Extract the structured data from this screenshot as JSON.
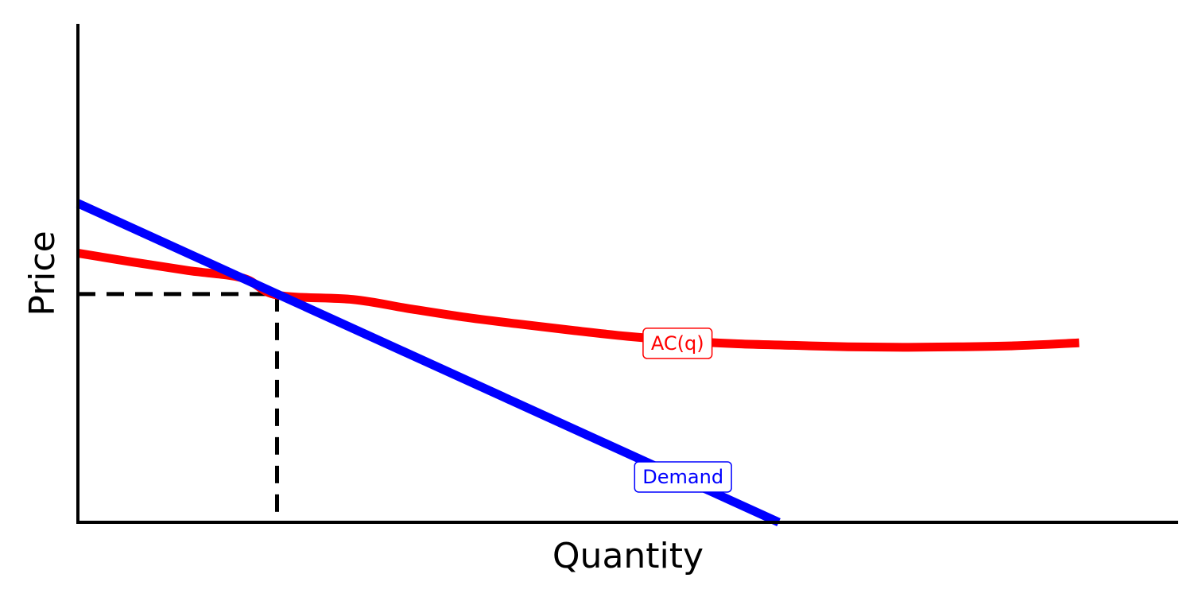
{
  "chart_data": {
    "type": "line",
    "title": "",
    "xlabel": "Quantity",
    "ylabel": "Price",
    "xlim": [
      0,
      10
    ],
    "ylim": [
      0,
      10
    ],
    "grid": false,
    "legend": "none",
    "series": [
      {
        "name": "Demand",
        "color": "#0000ff",
        "x": [
          0,
          6.37
        ],
        "y": [
          6.4,
          0
        ]
      },
      {
        "name": "AC(q)",
        "color": "#ff0000",
        "x": [
          0,
          0.5,
          1,
          1.5,
          1.81,
          2.5,
          3,
          3.5,
          4,
          4.5,
          5,
          5.5,
          6,
          6.5,
          7,
          7.5,
          8,
          8.5,
          9.1
        ],
        "y": [
          5.4,
          5.22,
          5.05,
          4.9,
          4.56,
          4.47,
          4.29,
          4.12,
          3.98,
          3.85,
          3.73,
          3.64,
          3.58,
          3.55,
          3.52,
          3.51,
          3.52,
          3.54,
          3.6
        ]
      }
    ],
    "reference_lines": [
      {
        "style": "dashed",
        "color": "#000000",
        "from": [
          0,
          4.58
        ],
        "to": [
          1.81,
          4.58
        ]
      },
      {
        "style": "dashed",
        "color": "#000000",
        "from": [
          1.81,
          4.58
        ],
        "to": [
          1.81,
          0
        ]
      }
    ],
    "annotations": [
      {
        "text": "AC(q)",
        "series": "AC(q)",
        "x": 5.45,
        "y": 3.59
      },
      {
        "text": "Demand",
        "series": "Demand",
        "x": 5.5,
        "y": 0.91
      }
    ]
  }
}
